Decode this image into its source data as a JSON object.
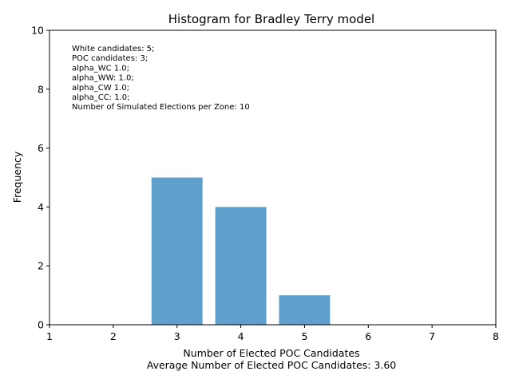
{
  "chart_data": {
    "type": "bar",
    "title": "Histogram for Bradley Terry model",
    "xlabel": "Number of Elected POC Candidates",
    "xlabel_sub": "Average Number of Elected POC Candidates: 3.60",
    "ylabel": "Frequency",
    "categories": [
      3,
      4,
      5
    ],
    "values": [
      5,
      4,
      1
    ],
    "bar_width": 0.8,
    "xlim": [
      1,
      8
    ],
    "ylim": [
      0,
      10
    ],
    "xticks": [
      1,
      2,
      3,
      4,
      5,
      6,
      7,
      8
    ],
    "yticks": [
      0,
      2,
      4,
      6,
      8,
      10
    ],
    "bar_color": "#5f9fcc",
    "grid": false,
    "annotation_lines": [
      "White candidates: 5;",
      "POC candidates: 3;",
      "alpha_WC 1.0;",
      "alpha_WW: 1.0;",
      "alpha_CW 1.0;",
      "alpha_CC: 1.0;",
      "Number of Simulated Elections per Zone: 10"
    ]
  }
}
